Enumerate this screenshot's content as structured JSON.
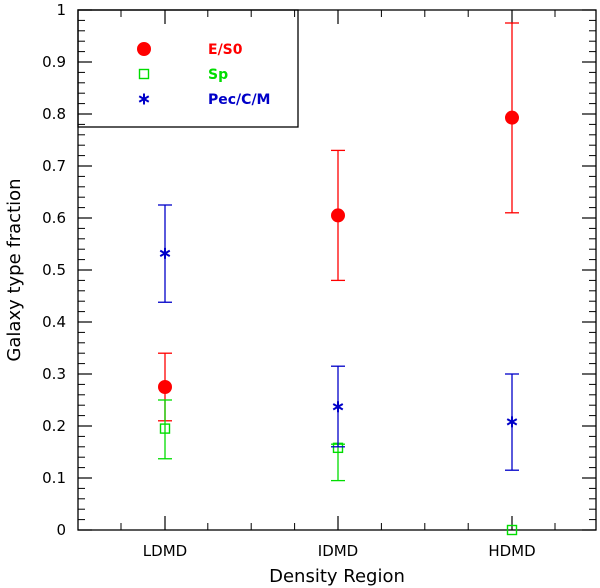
{
  "chart_data": {
    "type": "scatter",
    "title": "",
    "xlabel": "Density Region",
    "ylabel": "Galaxy type fraction",
    "categories": [
      "LDMD",
      "IDMD",
      "HDMD"
    ],
    "ylim": [
      0,
      1
    ],
    "yticks": [
      "0",
      "0.1",
      "0.2",
      "0.3",
      "0.4",
      "0.5",
      "0.6",
      "0.7",
      "0.8",
      "0.9",
      "1"
    ],
    "legend_position": "top-left",
    "series": [
      {
        "name": "E/S0",
        "marker": "filled-circle",
        "color": "#ff0000",
        "values": [
          0.275,
          0.605,
          0.793
        ],
        "err_low": [
          0.21,
          0.48,
          0.61
        ],
        "err_high": [
          0.34,
          0.73,
          0.975
        ]
      },
      {
        "name": "Sp",
        "marker": "open-square",
        "color": "#00dd00",
        "values": [
          0.195,
          0.158,
          0.0
        ],
        "err_low": [
          0.137,
          0.095,
          null
        ],
        "err_high": [
          0.25,
          0.165,
          null
        ]
      },
      {
        "name": "Pec/C/M",
        "marker": "asterisk",
        "color": "#0000c8",
        "values": [
          0.532,
          0.237,
          0.208
        ],
        "err_low": [
          0.438,
          0.16,
          0.115
        ],
        "err_high": [
          0.625,
          0.315,
          0.3
        ]
      }
    ]
  }
}
